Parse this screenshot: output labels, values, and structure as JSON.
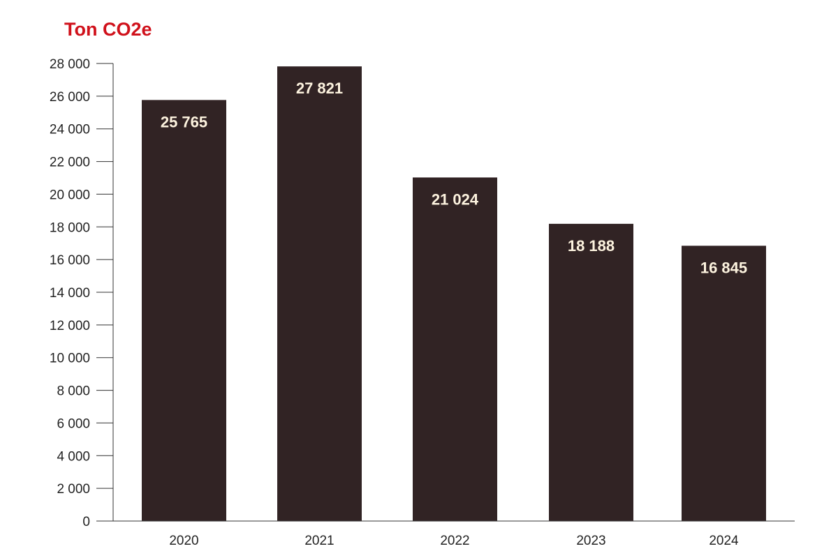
{
  "chart_data": {
    "type": "bar",
    "title": "Ton CO2e",
    "xlabel": "",
    "ylabel": "",
    "categories": [
      "2020",
      "2021",
      "2022",
      "2023",
      "2024"
    ],
    "values": [
      25765,
      27821,
      21024,
      18188,
      16845
    ],
    "value_labels": [
      "25 765",
      "27 821",
      "21 024",
      "18 188",
      "16 845"
    ],
    "ylim": [
      0,
      28000
    ],
    "y_ticks": [
      0,
      2000,
      4000,
      6000,
      8000,
      10000,
      12000,
      14000,
      16000,
      18000,
      20000,
      22000,
      24000,
      26000,
      28000
    ],
    "y_tick_labels": [
      "0",
      "2 000",
      "4 000",
      "6 000",
      "8 000",
      "10 000",
      "12 000",
      "14 000",
      "16 000",
      "18 000",
      "20 000",
      "22 000",
      "24 000",
      "26 000",
      "28 000"
    ],
    "grid": false,
    "legend": "none",
    "colors": {
      "bar": "#312324",
      "title": "#d0111b",
      "data_label": "#fdf3df"
    }
  }
}
